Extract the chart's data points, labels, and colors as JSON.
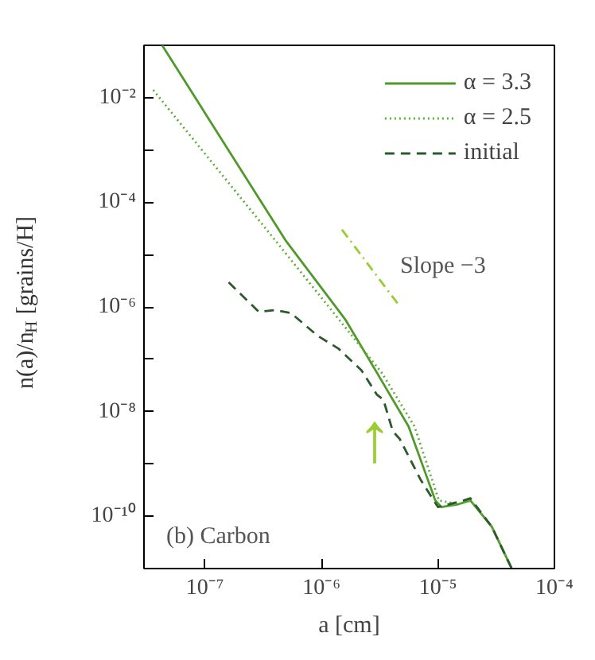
{
  "chart_data": {
    "type": "line",
    "xlabel": "a [cm]",
    "ylabel": "n(a)/n$_{H}$ [grains/H]",
    "log": "xy",
    "grid": false,
    "legend": "top right",
    "xlim": [
      3e-08,
      0.0001
    ],
    "ylim": [
      1e-11,
      0.1
    ],
    "xticks": [
      {
        "value": 1e-07,
        "label": "10⁻⁷"
      },
      {
        "value": 1e-06,
        "label": "10⁻⁶"
      },
      {
        "value": 1e-05,
        "label": "10⁻⁵"
      },
      {
        "value": 0.0001,
        "label": "10⁻⁴"
      }
    ],
    "yticks": [
      {
        "value": 0.01,
        "label": "10⁻²"
      },
      {
        "value": 0.001,
        "label": null
      },
      {
        "value": 0.0001,
        "label": "10⁻⁴"
      },
      {
        "value": 1e-05,
        "label": null
      },
      {
        "value": 1e-06,
        "label": "10⁻⁶"
      },
      {
        "value": 1e-07,
        "label": null
      },
      {
        "value": 1e-08,
        "label": "10⁻⁸"
      },
      {
        "value": 1e-09,
        "label": null
      },
      {
        "value": 1e-10,
        "label": "10⁻¹⁰"
      }
    ],
    "series": [
      {
        "name": "α = 3.3",
        "color": "#4f9a2a",
        "line_style": "solid",
        "x": [
          4.3e-08,
          4.9e-07,
          1.6e-06,
          3e-06,
          5.6e-06,
          9.5e-06,
          1.07e-05,
          1.5e-05,
          1.9e-05,
          2.9e-05,
          4.3e-05
        ],
        "values": [
          0.1,
          1.9e-05,
          5.8e-07,
          5.5e-08,
          5.2e-09,
          2e-10,
          1.5e-10,
          1.7e-10,
          2e-10,
          6.3e-11,
          1e-11
        ]
      },
      {
        "name": "α = 2.5",
        "color": "#5fae3a",
        "line_style": "dotted",
        "x": [
          3.6e-08,
          4e-07,
          3.3e-06,
          6.3e-06,
          1.02e-05,
          1.5e-05,
          1.9e-05,
          2.9e-05,
          4.3e-05
        ],
        "values": [
          0.014,
          1.9e-05,
          5.5e-08,
          5.2e-09,
          2e-10,
          1.7e-10,
          2e-10,
          6.3e-11,
          1e-11
        ]
      },
      {
        "name": "initial",
        "color": "#2d5a2d",
        "line_style": "dashed",
        "x": [
          1.6e-07,
          2.9e-07,
          4e-07,
          5.5e-07,
          9.3e-07,
          1.4e-06,
          2.2e-06,
          3e-06,
          3.4e-06,
          4.1e-06,
          4.7e-06,
          7.1e-06,
          1e-05,
          1.66e-05,
          1.9e-05,
          2.9e-05,
          4.3e-05
        ],
        "values": [
          2.95e-06,
          8.1e-07,
          8.7e-07,
          7.6e-07,
          2.8e-07,
          1.6e-07,
          6.2e-08,
          2.1e-08,
          1.7e-08,
          4.2e-09,
          3e-09,
          5e-10,
          1.5e-10,
          2e-10,
          2.2e-10,
          6.3e-11,
          1e-11
        ]
      },
      {
        "color": "#9acd32",
        "line_style": "dashdot",
        "x": [
          1.5e-06,
          4.6e-06
        ],
        "values": [
          3e-05,
          1.1e-06
        ]
      }
    ],
    "annotations": [
      "Slope −3",
      "↑",
      "(b) Carbon"
    ]
  }
}
